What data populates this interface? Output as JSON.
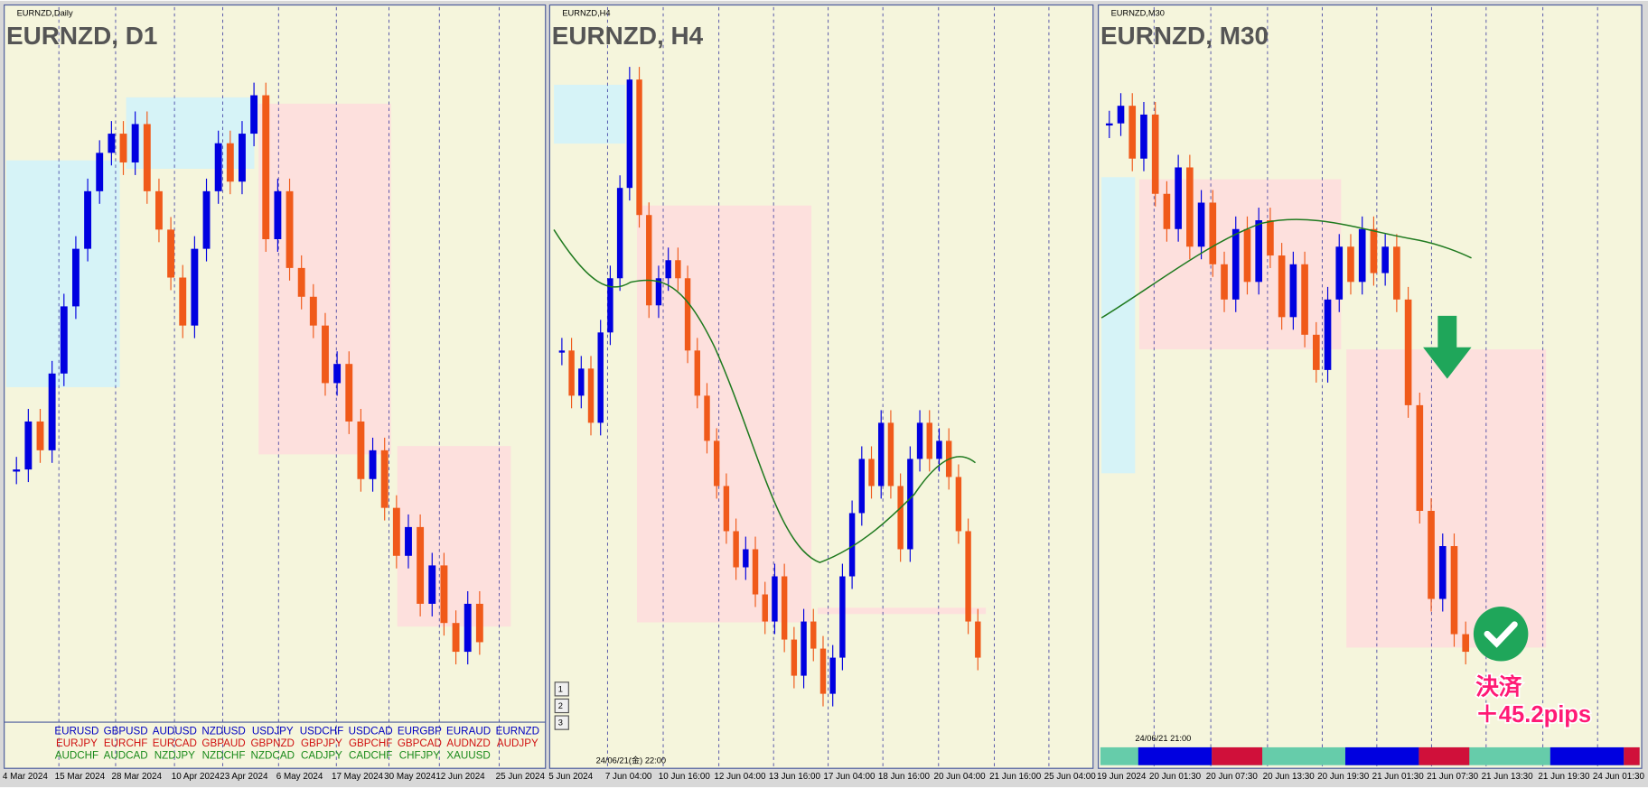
{
  "panels": [
    {
      "window": "EURNZD,Daily",
      "title": "EURNZD, D1",
      "x_labels": [
        "4 Mar 2024",
        "15 Mar 2024",
        "28 Mar 2024",
        "10 Apr 2024",
        "23 Apr 2024",
        "6 May 2024",
        "17 May 2024",
        "30 May 2024",
        "12 Jun 2024",
        "25 Jun 2024"
      ],
      "closes": [
        1.761,
        1.766,
        1.763,
        1.771,
        1.778,
        1.784,
        1.79,
        1.794,
        1.796,
        1.793,
        1.797,
        1.79,
        1.786,
        1.781,
        1.776,
        1.784,
        1.79,
        1.795,
        1.791,
        1.796,
        1.8,
        1.785,
        1.79,
        1.782,
        1.779,
        1.776,
        1.77,
        1.772,
        1.766,
        1.76,
        1.763,
        1.757,
        1.752,
        1.755,
        1.747,
        1.751,
        1.745,
        1.742,
        1.747,
        1.743
      ]
    },
    {
      "window": "EURNZD,H4",
      "title": "EURNZD, H4",
      "x_labels": [
        "5 Jun 2024",
        "7 Jun 04:00",
        "10 Jun 16:00",
        "12 Jun 04:00",
        "13 Jun 16:00",
        "17 Jun 04:00",
        "18 Jun 16:00",
        "20 Jun 04:00",
        "21 Jun 16:00",
        "25 Jun 04:00"
      ],
      "closes": [
        1.76,
        1.755,
        1.758,
        1.752,
        1.762,
        1.768,
        1.778,
        1.79,
        1.775,
        1.765,
        1.768,
        1.77,
        1.768,
        1.76,
        1.755,
        1.75,
        1.745,
        1.74,
        1.736,
        1.738,
        1.733,
        1.73,
        1.735,
        1.728,
        1.724,
        1.73,
        1.727,
        1.722,
        1.726,
        1.735,
        1.742,
        1.748,
        1.745,
        1.752,
        1.745,
        1.738,
        1.748,
        1.752,
        1.748,
        1.75,
        1.746,
        1.74,
        1.73,
        1.726
      ],
      "buttons": [
        "1",
        "2",
        "3"
      ],
      "timestamp": "24/06/21(金) 22:00"
    },
    {
      "window": "EURNZD,M30",
      "title": "EURNZD, M30",
      "x_labels": [
        "19 Jun 2024",
        "20 Jun 01:30",
        "20 Jun 07:30",
        "20 Jun 13:30",
        "20 Jun 19:30",
        "21 Jun 01:30",
        "21 Jun 07:30",
        "21 Jun 13:30",
        "21 Jun 19:30",
        "24 Jun 01:30"
      ],
      "closes": [
        1.76,
        1.761,
        1.758,
        1.7605,
        1.756,
        1.754,
        1.7575,
        1.753,
        1.7555,
        1.752,
        1.75,
        1.754,
        1.751,
        1.7545,
        1.7525,
        1.749,
        1.752,
        1.748,
        1.746,
        1.75,
        1.753,
        1.751,
        1.754,
        1.7515,
        1.753,
        1.75,
        1.744,
        1.738,
        1.733,
        1.736,
        1.731,
        1.73
      ],
      "timestamp": "24/06/21 21:00",
      "result_label": "決済",
      "result_pips": "＋45.2pips"
    }
  ],
  "symbols": [
    [
      "EURUSD",
      "GBPUSD",
      "AUDUSD",
      "NZDUSD",
      "USDJPY",
      "USDCHF",
      "USDCAD",
      "EURGBP",
      "EURAUD",
      "EURNZD"
    ],
    [
      "EURJPY",
      "EURCHF",
      "EURCAD",
      "GBPAUD",
      "GBPNZD",
      "GBPJPY",
      "GBPCHF",
      "GBPCAD",
      "AUDNZD",
      "AUDJPY"
    ],
    [
      "AUDCHF",
      "AUDCAD",
      "NZDJPY",
      "NZDCHF",
      "NZDCAD",
      "CADJPY",
      "CADCHF",
      "CHFJPY",
      "XAUUSD"
    ]
  ]
}
